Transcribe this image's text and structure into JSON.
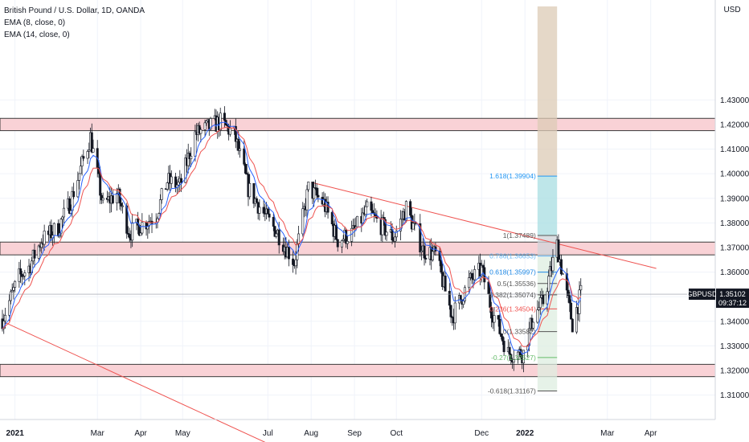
{
  "header": {
    "title": "British Pound / U.S. Dollar, 1D, OANDA",
    "indicators": [
      "EMA (8, close, 0)",
      "EMA (14, close, 0)"
    ]
  },
  "currency_label": "USD",
  "price_tag": {
    "symbol": "GBPUSD",
    "price": "1.35102",
    "countdown": "09:37:12"
  },
  "colors": {
    "zone_fill": "#f9d2d6",
    "zone_border": "#3b3b3b",
    "trendline": "#ef5350",
    "ema8": "#2962ff",
    "ema14": "#ef5350",
    "up": "#131722",
    "down": "#131722",
    "fib_teal": "#a8dde2",
    "fib_tan": "#dccbb6",
    "fib_green": "#ddeee0",
    "fib_gray": "#cfd3d8"
  },
  "fib_labels": [
    {
      "text": "1.618(1.39904)",
      "price": 1.39904,
      "color": "#2196f3"
    },
    {
      "text": "1(1.37489)",
      "price": 1.37489,
      "color": "#555555"
    },
    {
      "text": "0.786(1.36653)",
      "price": 1.36653,
      "color": "#64b5f6"
    },
    {
      "text": "0.618(1.35997)",
      "price": 1.35997,
      "color": "#1e88e5"
    },
    {
      "text": "0.5(1.35536)",
      "price": 1.35536,
      "color": "#555555"
    },
    {
      "text": "0.382(1.35074)",
      "price": 1.35074,
      "color": "#555555"
    },
    {
      "text": "0.236(1.34504)",
      "price": 1.34504,
      "color": "#ef5350"
    },
    {
      "text": "0(1.33582)",
      "price": 1.33582,
      "color": "#555555"
    },
    {
      "text": "-0.27(1.32527)",
      "price": 1.32527,
      "color": "#66bb6a"
    },
    {
      "text": "-0.618(1.31167)",
      "price": 1.31167,
      "color": "#555555"
    }
  ],
  "chart_data": {
    "type": "candlestick",
    "title": "British Pound / U.S. Dollar, 1D, OANDA",
    "ylabel": "USD",
    "ylim": [
      1.304,
      1.468
    ],
    "y_ticks": [
      "1.31000",
      "1.32000",
      "1.33000",
      "1.34000",
      "1.35000",
      "1.36000",
      "1.37000",
      "1.38000",
      "1.39000",
      "1.40000",
      "1.41000",
      "1.42000",
      "1.43000"
    ],
    "x_ticks": [
      "2021",
      "Mar",
      "Apr",
      "May",
      "Jul",
      "Aug",
      "Sep",
      "Oct",
      "Dec",
      "2022",
      "Mar",
      "Apr"
    ],
    "x_tick_dates": [
      "2021-01-01",
      "2021-03-01",
      "2021-04-01",
      "2021-05-01",
      "2021-07-01",
      "2021-08-01",
      "2021-09-01",
      "2021-10-01",
      "2021-12-01",
      "2022-01-01",
      "2022-03-01",
      "2022-04-01"
    ],
    "grid": true,
    "series": [
      {
        "name": "GBPUSD",
        "dates": [
          "2020-12-23",
          "2021-01-04",
          "2021-01-11",
          "2021-01-20",
          "2021-02-01",
          "2021-02-10",
          "2021-02-24",
          "2021-03-05",
          "2021-03-15",
          "2021-03-24",
          "2021-04-01",
          "2021-04-12",
          "2021-04-20",
          "2021-04-29",
          "2021-05-10",
          "2021-05-20",
          "2021-05-28",
          "2021-06-07",
          "2021-06-17",
          "2021-06-30",
          "2021-07-08",
          "2021-07-20",
          "2021-07-30",
          "2021-08-10",
          "2021-08-20",
          "2021-08-31",
          "2021-09-10",
          "2021-09-20",
          "2021-09-29",
          "2021-10-08",
          "2021-10-20",
          "2021-10-29",
          "2021-11-10",
          "2021-11-22",
          "2021-12-01",
          "2021-12-08",
          "2021-12-20",
          "2021-12-31",
          "2022-01-07",
          "2022-01-14",
          "2022-01-24",
          "2022-01-27",
          "2022-02-04",
          "2022-02-10"
        ],
        "close": [
          1.341,
          1.358,
          1.362,
          1.373,
          1.378,
          1.389,
          1.415,
          1.387,
          1.392,
          1.376,
          1.379,
          1.383,
          1.397,
          1.395,
          1.416,
          1.419,
          1.421,
          1.416,
          1.394,
          1.382,
          1.376,
          1.364,
          1.394,
          1.388,
          1.373,
          1.376,
          1.385,
          1.379,
          1.374,
          1.386,
          1.369,
          1.367,
          1.342,
          1.356,
          1.361,
          1.345,
          1.327,
          1.327,
          1.342,
          1.348,
          1.371,
          1.362,
          1.339,
          1.351
        ]
      }
    ],
    "ema_periods": [
      8,
      14
    ],
    "zones": [
      [
        1.4175,
        1.4225
      ],
      [
        1.367,
        1.3722
      ],
      [
        1.3175,
        1.3225
      ]
    ],
    "trendlines": [
      {
        "from": [
          "2021-08-01",
          1.3965
        ],
        "to": [
          "2022-04-05",
          1.3615
        ]
      },
      {
        "from": [
          "2020-12-23",
          1.34
        ],
        "to": [
          "2021-07-01",
          1.2903
        ]
      }
    ],
    "fib_extension_span": [
      "2022-01-10",
      "2022-01-24"
    ]
  }
}
